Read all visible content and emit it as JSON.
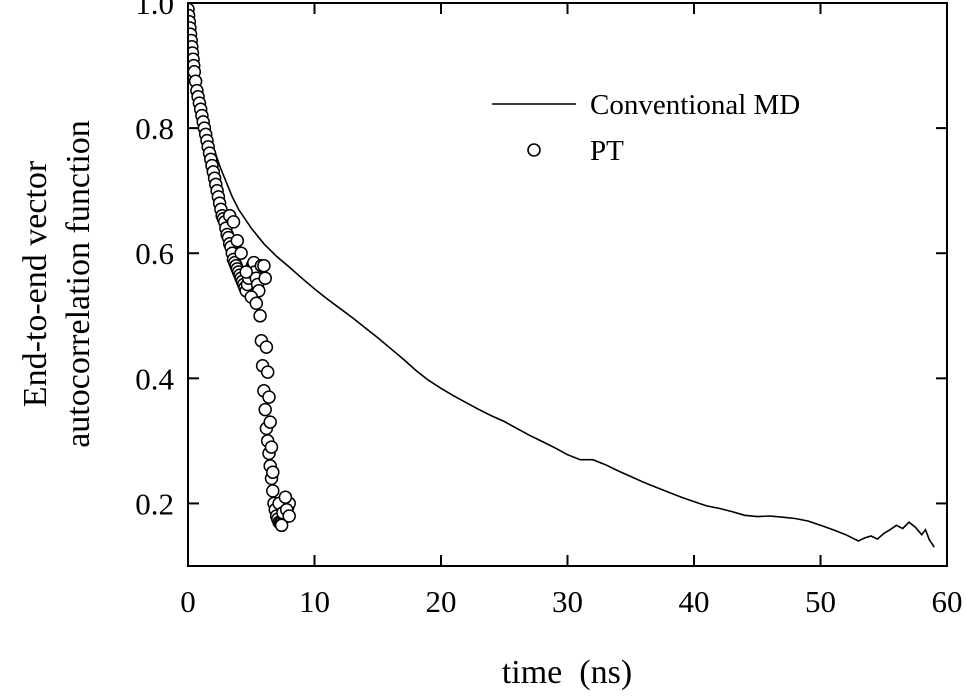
{
  "chart_data": {
    "type": "line",
    "title": "",
    "xlabel": "time  (ns)",
    "ylabel_lines": [
      "End-to-end vector",
      "autocorrelation function"
    ],
    "xlim": [
      0,
      60
    ],
    "ylim": [
      0.1,
      1.0
    ],
    "x_ticks": [
      0,
      10,
      20,
      30,
      40,
      50,
      60
    ],
    "x_tick_labels": [
      "0",
      "10",
      "20",
      "30",
      "40",
      "50",
      "60"
    ],
    "y_ticks": [
      0.2,
      0.4,
      0.6,
      0.8,
      1.0
    ],
    "y_tick_labels": [
      "0.2",
      "0.4",
      "0.6",
      "0.8",
      "1.0"
    ],
    "grid": false,
    "legend_position": "top-right",
    "series": [
      {
        "name": "Conventional MD",
        "style": "line",
        "color": "#000000",
        "x": [
          0,
          0.3,
          0.6,
          1,
          1.5,
          2,
          2.5,
          3,
          3.5,
          4,
          5,
          6,
          7,
          8,
          9,
          10,
          11,
          12,
          13,
          14,
          15,
          16,
          17,
          18,
          19,
          20,
          21,
          22,
          23,
          24,
          25,
          26,
          27,
          28,
          29,
          30,
          31,
          32,
          33,
          34,
          35,
          36,
          37,
          38,
          39,
          40,
          41,
          42,
          43,
          44,
          45,
          46,
          47,
          48,
          49,
          50,
          51,
          52,
          53,
          53.5,
          54,
          54.5,
          55,
          55.5,
          56,
          56.5,
          57,
          57.5,
          58,
          58.3,
          58.6,
          59
        ],
        "y": [
          1.0,
          0.93,
          0.89,
          0.85,
          0.81,
          0.77,
          0.74,
          0.715,
          0.69,
          0.67,
          0.64,
          0.615,
          0.595,
          0.578,
          0.56,
          0.543,
          0.527,
          0.512,
          0.497,
          0.481,
          0.465,
          0.448,
          0.431,
          0.413,
          0.397,
          0.384,
          0.372,
          0.361,
          0.35,
          0.34,
          0.331,
          0.32,
          0.309,
          0.299,
          0.289,
          0.278,
          0.27,
          0.27,
          0.262,
          0.252,
          0.243,
          0.234,
          0.226,
          0.218,
          0.21,
          0.203,
          0.196,
          0.192,
          0.187,
          0.181,
          0.179,
          0.18,
          0.178,
          0.176,
          0.172,
          0.165,
          0.158,
          0.15,
          0.14,
          0.145,
          0.148,
          0.143,
          0.152,
          0.158,
          0.165,
          0.16,
          0.17,
          0.162,
          0.15,
          0.158,
          0.142,
          0.13
        ]
      },
      {
        "name": "PT",
        "style": "markers",
        "marker": "open-circle",
        "color": "#000000",
        "x": [
          0.0,
          0.05,
          0.1,
          0.15,
          0.2,
          0.25,
          0.3,
          0.35,
          0.4,
          0.45,
          0.5,
          0.6,
          0.7,
          0.8,
          0.9,
          1.0,
          1.1,
          1.2,
          1.3,
          1.4,
          1.5,
          1.6,
          1.7,
          1.8,
          1.9,
          2.0,
          2.1,
          2.2,
          2.3,
          2.4,
          2.5,
          2.6,
          2.7,
          2.8,
          2.9,
          3.0,
          3.1,
          3.2,
          3.3,
          3.4,
          3.5,
          3.6,
          3.7,
          3.8,
          3.9,
          4.0,
          4.1,
          4.2,
          4.3,
          4.4,
          4.5,
          4.6,
          4.7,
          4.8,
          4.9,
          5.0,
          5.1,
          5.2,
          5.3,
          5.4,
          5.5,
          5.6,
          5.7,
          5.8,
          5.9,
          6.0,
          6.1,
          6.2,
          6.3,
          6.4,
          6.5,
          6.6,
          6.7,
          6.8,
          6.9,
          7.0,
          7.1,
          7.2,
          7.3,
          7.4,
          7.5,
          7.6,
          7.7,
          7.8,
          7.9,
          8.0,
          3.3,
          3.6,
          3.9,
          4.2,
          4.6,
          5.0,
          5.4,
          5.8,
          6.1,
          6.0,
          6.2,
          6.3,
          6.4,
          6.5,
          6.6,
          6.7,
          7.2,
          7.5,
          7.8,
          8.0,
          7.4,
          7.7
        ],
        "y": [
          0.99,
          0.98,
          0.97,
          0.96,
          0.95,
          0.94,
          0.93,
          0.92,
          0.91,
          0.9,
          0.89,
          0.875,
          0.86,
          0.85,
          0.84,
          0.83,
          0.82,
          0.81,
          0.8,
          0.79,
          0.78,
          0.77,
          0.76,
          0.75,
          0.74,
          0.73,
          0.72,
          0.71,
          0.7,
          0.69,
          0.68,
          0.67,
          0.66,
          0.655,
          0.65,
          0.64,
          0.63,
          0.625,
          0.615,
          0.61,
          0.6,
          0.59,
          0.585,
          0.58,
          0.575,
          0.57,
          0.565,
          0.56,
          0.555,
          0.55,
          0.545,
          0.54,
          0.55,
          0.56,
          0.57,
          0.575,
          0.58,
          0.585,
          0.57,
          0.56,
          0.55,
          0.54,
          0.5,
          0.46,
          0.42,
          0.38,
          0.35,
          0.32,
          0.3,
          0.28,
          0.26,
          0.24,
          0.22,
          0.2,
          0.19,
          0.18,
          0.175,
          0.17,
          0.168,
          0.172,
          0.175,
          0.18,
          0.185,
          0.19,
          0.195,
          0.2,
          0.66,
          0.65,
          0.62,
          0.6,
          0.57,
          0.53,
          0.52,
          0.58,
          0.56,
          0.58,
          0.45,
          0.41,
          0.37,
          0.33,
          0.29,
          0.25,
          0.2,
          0.185,
          0.19,
          0.18,
          0.165,
          0.21
        ]
      }
    ]
  }
}
